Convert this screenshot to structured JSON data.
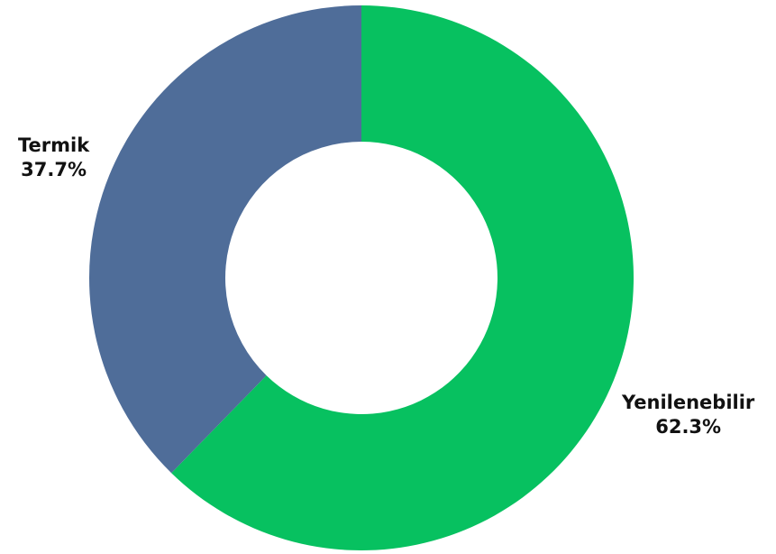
{
  "chart_data": {
    "type": "pie",
    "variant": "donut",
    "title": "",
    "slices": [
      {
        "label": "Yenilenebilir",
        "value": 62.3,
        "display": "62.3%",
        "color": "#07c160"
      },
      {
        "label": "Termik",
        "value": 37.7,
        "display": "37.7%",
        "color": "#4f6d99"
      }
    ],
    "start_angle_deg": 0,
    "direction": "clockwise",
    "legend": "none"
  }
}
